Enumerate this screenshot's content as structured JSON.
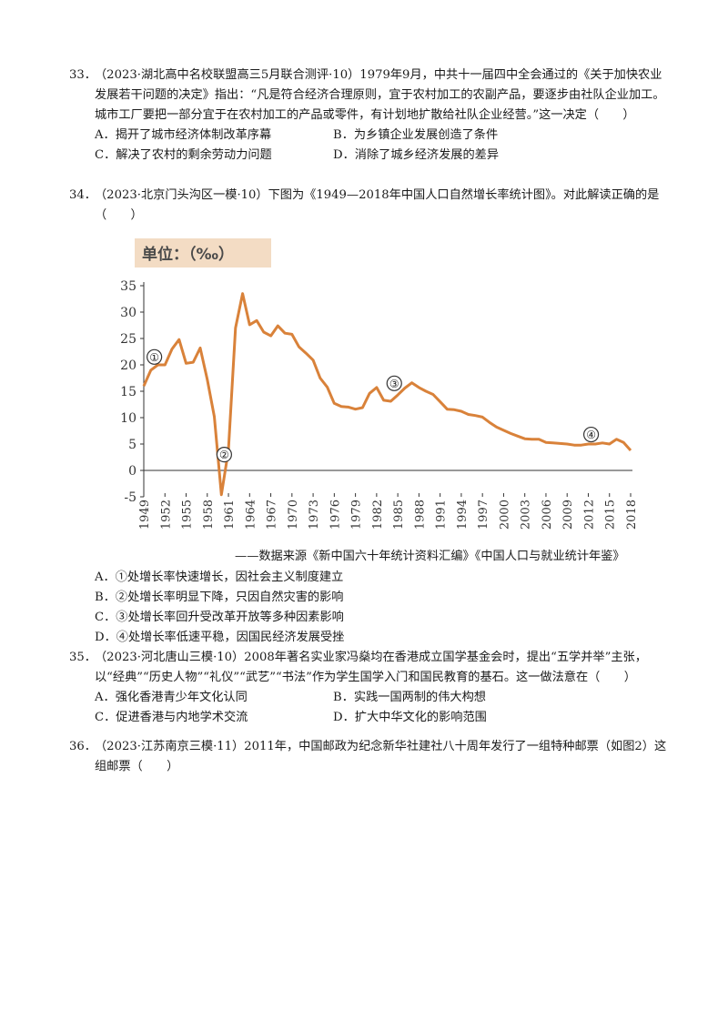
{
  "questions": [
    {
      "num": "33．",
      "stem": "（2023·湖北高中名校联盟高三5月联合测评·10）1979年9月，中共十一届四中全会通过的《关于加快农业发展若干问题的决定》指出：“凡是符合经济合理原则，宜于农村加工的农副产品，要逐步由社队企业加工。城市工厂要把一部分宜于在农村加工的产品或零件，有计划地扩散给社队企业经营。”这一决定（　　）",
      "options": [
        "A．揭开了城市经济体制改革序幕",
        "B．为乡镇企业发展创造了条件",
        "C．解决了农村的剩余劳动力问题",
        "D．消除了城乡经济发展的差异"
      ]
    },
    {
      "num": "34．",
      "stem": "（2023·北京门头沟区一模·10）下图为《1949—2018年中国人口自然增长率统计图》。对此解读正确的是（　　）",
      "source": "——数据来源《新中国六十年统计资料汇编》《中国人口与就业统计年鉴》",
      "options": [
        "A．①处增长率快速增长，因社会主义制度建立",
        "B．②处增长率明显下降，只因自然灾害的影响",
        "C．③处增长率回升受改革开放等多种因素影响",
        "D．④处增长率低速平稳，因国民经济发展受挫"
      ]
    },
    {
      "num": "35．",
      "stem": "（2023·河北唐山三模·10）2008年著名实业家冯燊均在香港成立国学基金会时，提出“五学并举”主张，以“经典”“历史人物”“礼仪”“武艺”“书法”作为学生国学入门和国民教育的基石。这一做法意在（　　）",
      "options": [
        "A．强化香港青少年文化认同",
        "B．实践一国两制的伟大构想",
        "C．促进香港与内地学术交流",
        "D．扩大中华文化的影响范围"
      ]
    },
    {
      "num": "36．",
      "stem": "（2023·江苏南京三模·11）2011年，中国邮政为纪念新华社建社八十周年发行了一组特种邮票（如图2）这组邮票（　　）",
      "options": []
    }
  ],
  "chart_data": {
    "type": "line",
    "unit_label": "单位：（‰）",
    "ylim": [
      -5,
      35
    ],
    "yticks": [
      "35",
      "30",
      "25",
      "20",
      "15",
      "10",
      "5",
      "0",
      "-5"
    ],
    "xticks": [
      "1949",
      "1952",
      "1955",
      "1958",
      "1961",
      "1964",
      "1967",
      "1970",
      "1973",
      "1976",
      "1979",
      "1982",
      "1985",
      "1988",
      "1991",
      "1994",
      "1997",
      "2000",
      "2003",
      "2006",
      "2009",
      "2012",
      "2015",
      "2018"
    ],
    "line_color": "#d9823a",
    "unit_box_color": "#f3dcc4",
    "series": [
      {
        "x": [
          1949,
          1950,
          1951,
          1952,
          1953,
          1954,
          1955,
          1956,
          1957,
          1958,
          1959,
          1960,
          1961,
          1962,
          1963,
          1964,
          1965,
          1966,
          1967,
          1968,
          1969,
          1970,
          1971,
          1972,
          1973,
          1974,
          1975,
          1976,
          1977,
          1978,
          1979,
          1980,
          1981,
          1982,
          1983,
          1984,
          1985,
          1986,
          1987,
          1988,
          1989,
          1990,
          1991,
          1992,
          1993,
          1994,
          1995,
          1996,
          1997,
          1998,
          1999,
          2000,
          2001,
          2002,
          2003,
          2004,
          2005,
          2006,
          2007,
          2008,
          2009,
          2010,
          2011,
          2012,
          2013,
          2014,
          2015,
          2016,
          2017,
          2018
        ],
        "y": [
          16,
          19,
          20,
          20,
          23,
          24.8,
          20.3,
          20.5,
          23.2,
          17.2,
          10.2,
          -4.6,
          3.8,
          27,
          33.5,
          27.6,
          28.4,
          26.2,
          25.5,
          27.4,
          26,
          25.8,
          23.4,
          22.2,
          20.9,
          17.5,
          15.8,
          12.7,
          12.1,
          12,
          11.6,
          11.9,
          14.6,
          15.7,
          13.3,
          13.1,
          14.3,
          15.6,
          16.6,
          15.7,
          15,
          14.4,
          13,
          11.6,
          11.5,
          11.2,
          10.6,
          10.4,
          10.1,
          9.1,
          8.2,
          7.6,
          7,
          6.5,
          6,
          5.9,
          5.9,
          5.3,
          5.2,
          5.1,
          5,
          4.8,
          4.8,
          5,
          5,
          5.2,
          5,
          5.9,
          5.3,
          3.8
        ]
      }
    ],
    "markers": [
      {
        "label": "①",
        "year": 1950.5,
        "value": 21.5
      },
      {
        "label": "②",
        "year": 1960.4,
        "value": 3.0
      },
      {
        "label": "③",
        "year": 1984.5,
        "value": 16.5
      },
      {
        "label": "④",
        "year": 2012.4,
        "value": 6.8
      }
    ]
  }
}
